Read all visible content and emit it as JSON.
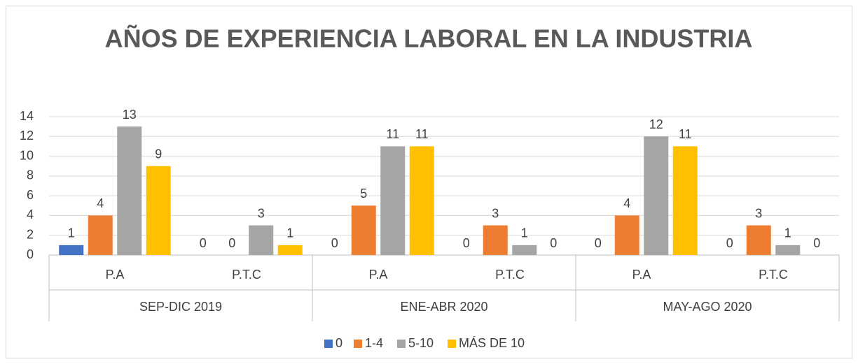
{
  "chart_data": {
    "type": "bar",
    "title": "AÑOS DE EXPERIENCIA LABORAL EN LA INDUSTRIA",
    "categories": [
      "P.A",
      "P.T.C",
      "P.A",
      "P.T.C",
      "P.A",
      "P.T.C"
    ],
    "groups": [
      "SEP-DIC 2019",
      "ENE-ABR 2020",
      "MAY-AGO 2020"
    ],
    "series": [
      {
        "name": "0",
        "color": "#4472c4",
        "values": [
          1,
          0,
          0,
          0,
          0,
          0
        ]
      },
      {
        "name": "1-4",
        "color": "#ed7d31",
        "values": [
          4,
          0,
          5,
          3,
          4,
          3
        ]
      },
      {
        "name": "5-10",
        "color": "#a5a5a5",
        "values": [
          13,
          3,
          11,
          1,
          12,
          1
        ]
      },
      {
        "name": "MÁS DE 10",
        "color": "#ffc000",
        "values": [
          9,
          1,
          11,
          0,
          11,
          0
        ]
      }
    ],
    "ylim": [
      0,
      14
    ],
    "yticks": [
      0,
      2,
      4,
      6,
      8,
      10,
      12,
      14
    ],
    "grid": true,
    "legend": "bottom"
  }
}
